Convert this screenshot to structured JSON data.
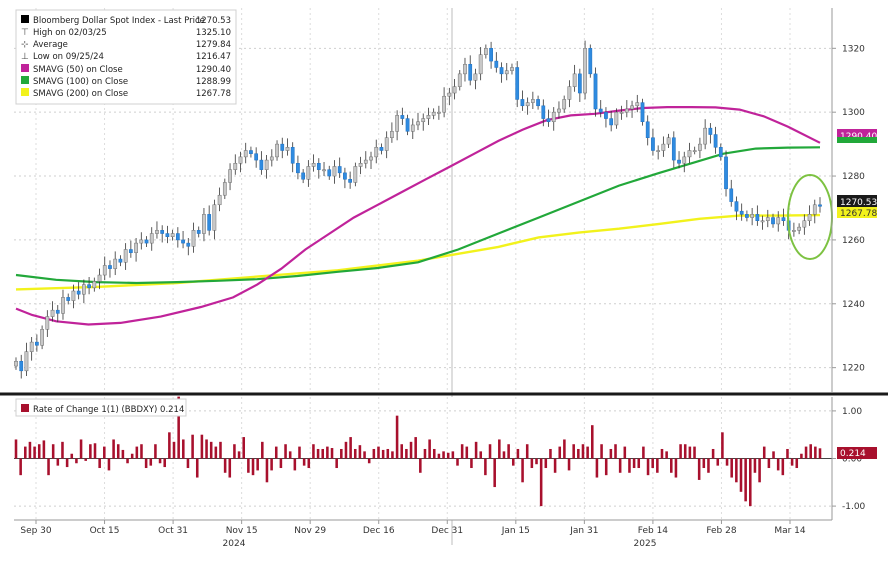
{
  "chart_data": [
    {
      "type": "candlestick",
      "legend": {
        "placement": "top-left",
        "items": [
          {
            "label": "Bloomberg Dollar Spot Index - Last Price",
            "value": "1270.53",
            "color": "#000000",
            "icon": "square-icon"
          },
          {
            "label": "High on 02/03/25",
            "value": "1325.10",
            "icon": "high-marker-icon"
          },
          {
            "label": "Average",
            "value": "1279.84",
            "icon": "average-marker-icon"
          },
          {
            "label": "Low on 09/25/24",
            "value": "1216.47",
            "icon": "low-marker-icon"
          },
          {
            "label": "SMAVG (50)  on Close",
            "value": "1290.40",
            "color": "#c0239a",
            "icon": "square-icon"
          },
          {
            "label": "SMAVG (100)  on Close",
            "value": "1288.99",
            "color": "#22a83a",
            "icon": "square-icon"
          },
          {
            "label": "SMAVG (200)  on Close",
            "value": "1267.78",
            "color": "#f2f21c",
            "icon": "square-icon"
          }
        ]
      },
      "y_ticks": [
        "1220",
        "1240",
        "1260",
        "1280",
        "1300",
        "1320"
      ],
      "ylim": [
        1213,
        1332
      ],
      "grid": true,
      "last_price_label": "1270.53",
      "sma50_label": "1290.40",
      "sma200_label": "1267.78",
      "colors": {
        "up": "#c8c8c8",
        "down": "#2f8be0",
        "wick": "#333333",
        "sma50": "#c0239a",
        "sma100": "#22a83a",
        "sma200": "#f2f21c",
        "annotation": "#7dc242"
      },
      "closes": [
        1222,
        1219,
        1225,
        1228,
        1227,
        1232,
        1236,
        1238,
        1237,
        1242,
        1241,
        1244,
        1243,
        1246,
        1245,
        1247,
        1249,
        1252,
        1251,
        1254,
        1253,
        1257,
        1256,
        1259,
        1260,
        1259,
        1262,
        1263,
        1262,
        1261,
        1262,
        1260,
        1259,
        1258,
        1263,
        1262,
        1268,
        1263,
        1271,
        1274,
        1278,
        1282,
        1284,
        1286,
        1288,
        1287,
        1285,
        1282,
        1285,
        1286,
        1290,
        1288,
        1289,
        1284,
        1281,
        1279,
        1283,
        1284,
        1282,
        1282,
        1280,
        1283,
        1281,
        1279,
        1278,
        1283,
        1284,
        1285,
        1286,
        1289,
        1288,
        1292,
        1294,
        1299,
        1298,
        1294,
        1296,
        1297,
        1298,
        1299,
        1300,
        1300,
        1305,
        1306,
        1308,
        1312,
        1315,
        1310,
        1312,
        1318,
        1320,
        1316,
        1314,
        1312,
        1313,
        1314,
        1304,
        1302,
        1303,
        1304,
        1302,
        1298,
        1297,
        1300,
        1301,
        1304,
        1308,
        1312,
        1306,
        1320,
        1312,
        1301,
        1300,
        1298,
        1296,
        1300,
        1300,
        1301,
        1302,
        1303,
        1297,
        1292,
        1288,
        1288,
        1290,
        1292,
        1285,
        1284,
        1286,
        1288,
        1288,
        1290,
        1295,
        1293,
        1289,
        1286,
        1276,
        1272,
        1269,
        1268,
        1267,
        1268,
        1266,
        1266,
        1267,
        1265,
        1267,
        1266,
        1263,
        1263,
        1264,
        1266,
        1268,
        1271,
        1270.53
      ],
      "sma50": [
        [
          0,
          1238.5
        ],
        [
          0.02,
          1236.5
        ],
        [
          0.05,
          1234.5
        ],
        [
          0.09,
          1233.5
        ],
        [
          0.13,
          1234
        ],
        [
          0.18,
          1236
        ],
        [
          0.23,
          1239
        ],
        [
          0.27,
          1242
        ],
        [
          0.3,
          1246
        ],
        [
          0.33,
          1251
        ],
        [
          0.36,
          1257
        ],
        [
          0.39,
          1262
        ],
        [
          0.42,
          1267
        ],
        [
          0.45,
          1271
        ],
        [
          0.48,
          1275
        ],
        [
          0.51,
          1279
        ],
        [
          0.54,
          1283
        ],
        [
          0.57,
          1287
        ],
        [
          0.6,
          1291
        ],
        [
          0.63,
          1294.5
        ],
        [
          0.66,
          1297.5
        ],
        [
          0.69,
          1299
        ],
        [
          0.72,
          1299.5
        ],
        [
          0.75,
          1300.5
        ],
        [
          0.78,
          1301.3
        ],
        [
          0.81,
          1301.6
        ],
        [
          0.84,
          1301.6
        ],
        [
          0.87,
          1301.5
        ],
        [
          0.9,
          1300.8
        ],
        [
          0.93,
          1298.7
        ],
        [
          0.96,
          1295.5
        ],
        [
          1.0,
          1290.4
        ]
      ],
      "sma100": [
        [
          0,
          1249
        ],
        [
          0.05,
          1247.5
        ],
        [
          0.1,
          1246.8
        ],
        [
          0.15,
          1246.5
        ],
        [
          0.2,
          1246.8
        ],
        [
          0.25,
          1247.2
        ],
        [
          0.3,
          1247.7
        ],
        [
          0.35,
          1248.7
        ],
        [
          0.4,
          1250
        ],
        [
          0.45,
          1251.2
        ],
        [
          0.5,
          1253
        ],
        [
          0.55,
          1257
        ],
        [
          0.6,
          1262
        ],
        [
          0.65,
          1267
        ],
        [
          0.7,
          1272
        ],
        [
          0.75,
          1277
        ],
        [
          0.8,
          1281
        ],
        [
          0.84,
          1284
        ],
        [
          0.88,
          1287
        ],
        [
          0.92,
          1288.6
        ],
        [
          0.96,
          1288.9
        ],
        [
          1.0,
          1288.99
        ]
      ],
      "sma200": [
        [
          0,
          1244.5
        ],
        [
          0.1,
          1245.3
        ],
        [
          0.2,
          1246.5
        ],
        [
          0.3,
          1248.5
        ],
        [
          0.4,
          1250.5
        ],
        [
          0.5,
          1253.5
        ],
        [
          0.6,
          1257.8
        ],
        [
          0.65,
          1260.8
        ],
        [
          0.7,
          1262.3
        ],
        [
          0.75,
          1263.5
        ],
        [
          0.8,
          1265
        ],
        [
          0.85,
          1266.6
        ],
        [
          0.9,
          1267.6
        ],
        [
          0.95,
          1267.6
        ],
        [
          1.0,
          1267.78
        ]
      ]
    },
    {
      "type": "bar",
      "legend": {
        "placement": "top-left",
        "items": [
          {
            "label": "Rate of Change 1(1) (BBDXY)  0.214",
            "color": "#a8102d",
            "icon": "square-icon"
          }
        ]
      },
      "y_ticks": [
        "1.00",
        "0.00",
        "-1.00"
      ],
      "ylim": [
        -1.25,
        1.25
      ],
      "zero_label": "0.00",
      "last_value_label": "0.214",
      "color": "#a8102d",
      "values": [
        0.4,
        -0.35,
        0.25,
        0.35,
        0.25,
        0.3,
        0.38,
        -0.35,
        0.3,
        -0.15,
        0.35,
        -0.18,
        0.1,
        -0.1,
        0.4,
        -0.05,
        0.3,
        0.32,
        -0.2,
        0.25,
        -0.25,
        0.4,
        0.3,
        0.18,
        -0.1,
        0.1,
        0.25,
        0.3,
        -0.2,
        -0.15,
        0.3,
        -0.1,
        -0.18,
        0.55,
        0.35,
        1.3,
        0.4,
        -0.2,
        0.5,
        -0.4,
        0.5,
        0.4,
        0.35,
        0.25,
        0.35,
        -0.3,
        -0.4,
        0.3,
        0.15,
        0.45,
        -0.3,
        -0.35,
        -0.25,
        0.35,
        -0.5,
        -0.25,
        0.25,
        -0.2,
        0.3,
        0.15,
        -0.25,
        0.25,
        -0.15,
        -0.2,
        0.3,
        0.2,
        0.2,
        0.25,
        0.22,
        -0.2,
        0.2,
        0.35,
        0.45,
        0.2,
        0.28,
        0.15,
        -0.1,
        0.2,
        0.25,
        0.18,
        0.2,
        0.15,
        0.9,
        0.3,
        0.2,
        0.35,
        0.45,
        -0.3,
        0.2,
        0.4,
        0.2,
        0.1,
        0.15,
        0.12,
        0.15,
        -0.15,
        0.3,
        0.25,
        -0.2,
        0.35,
        0.15,
        -0.35,
        0.3,
        -0.6,
        0.4,
        0.15,
        0.3,
        -0.15,
        0.2,
        -0.5,
        0.3,
        -0.2,
        -0.12,
        -1.0,
        -0.2,
        0.2,
        -0.3,
        0.25,
        0.4,
        -0.25,
        0.3,
        0.2,
        0.3,
        0.25,
        0.7,
        -0.4,
        0.3,
        -0.35,
        0.2,
        0.3,
        -0.3,
        0.25,
        -0.3,
        -0.2,
        -0.2,
        0.25,
        -0.35,
        -0.2,
        -0.3,
        0.2,
        0.15,
        -0.3,
        -0.4,
        0.3,
        0.3,
        0.25,
        0.25,
        -0.45,
        -0.2,
        -0.3,
        0.2,
        -0.15,
        0.55,
        -0.15,
        -0.4,
        -0.5,
        -0.7,
        -0.9,
        -1.0,
        -0.3,
        -0.5,
        0.25,
        -0.2,
        0.15,
        -0.25,
        -0.35,
        0.2,
        -0.15,
        -0.2,
        0.1,
        0.25,
        0.3,
        0.25,
        0.214
      ]
    }
  ],
  "x_axis": {
    "ticks": [
      "Sep 30",
      "Oct 15",
      "Oct 31",
      "Nov 15",
      "Nov 29",
      "Dec 16",
      "Dec 31",
      "Jan 15",
      "Jan 31",
      "Feb 14",
      "Feb 28",
      "Mar 14"
    ],
    "year_labels": [
      "2024",
      "2025"
    ]
  }
}
